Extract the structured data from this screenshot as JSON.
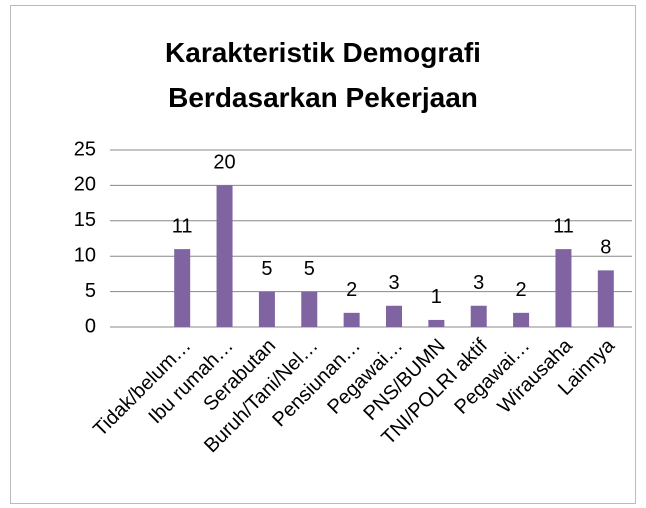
{
  "chart_data": {
    "type": "bar",
    "title": "Karakteristik Demografi Berdasarkan Pekerjaan",
    "categories": [
      "Tidak/belum…",
      "Ibu rumah…",
      "Serabutan",
      "Buruh/Tani/Nel…",
      "Pensiunan…",
      "Pegawai…",
      "PNS/BUMN",
      "TNI/POLRI aktif",
      "Pegawai…",
      "Wirausaha",
      "Lainnya"
    ],
    "values": [
      11,
      20,
      5,
      5,
      2,
      3,
      1,
      3,
      2,
      11,
      8
    ],
    "color": "#8064a2",
    "ylim": [
      0,
      25
    ],
    "yticks": [
      0,
      5,
      10,
      15,
      20,
      25
    ],
    "grid": true
  }
}
